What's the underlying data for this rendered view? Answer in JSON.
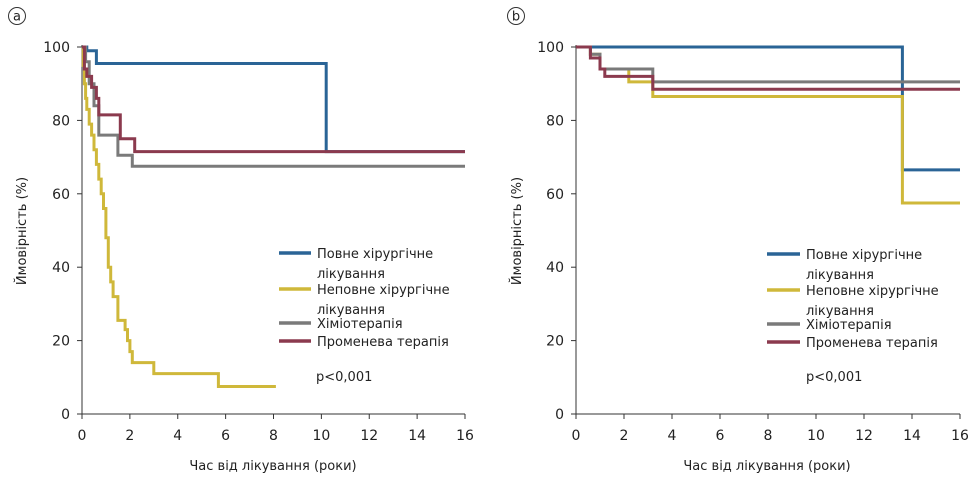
{
  "chart_data": [
    {
      "panel_label": "a",
      "type": "line",
      "step": true,
      "xlabel": "Час від лікування (роки)",
      "ylabel": "Ймовірність (%)",
      "xlim": [
        0,
        16
      ],
      "ylim": [
        0,
        100
      ],
      "xticks": [
        0,
        2,
        4,
        6,
        8,
        10,
        12,
        14,
        16
      ],
      "yticks": [
        0,
        20,
        40,
        60,
        80,
        100
      ],
      "grid": false,
      "legend_position": "right",
      "annotation": "p<0,001",
      "series": [
        {
          "name": "Повне хірургічне лікування",
          "color": "#2a6496",
          "x": [
            0,
            0.2,
            0.6,
            10.2,
            16
          ],
          "y": [
            100,
            99,
            95.5,
            71.5,
            71.5
          ]
        },
        {
          "name": "Неповне хірургічне лікування",
          "color": "#cfb83a",
          "x": [
            0,
            0.05,
            0.1,
            0.15,
            0.2,
            0.3,
            0.4,
            0.5,
            0.6,
            0.7,
            0.8,
            0.9,
            1.0,
            1.1,
            1.2,
            1.3,
            1.5,
            1.8,
            1.9,
            2.0,
            2.1,
            2.3,
            2.6,
            3.0,
            5.7,
            8.1
          ],
          "y": [
            100,
            95,
            90,
            86,
            83,
            79,
            76,
            72,
            68,
            64,
            60,
            56,
            48,
            40,
            36,
            32,
            25.5,
            23,
            20,
            17,
            14,
            14,
            14,
            11,
            7.5,
            7.5
          ]
        },
        {
          "name": "Хіміотерапія",
          "color": "#7a7a7a",
          "x": [
            0,
            0.15,
            0.3,
            0.5,
            0.7,
            1.5,
            2.1,
            16
          ],
          "y": [
            100,
            96,
            90,
            84,
            76,
            70.5,
            67.5,
            67.5
          ]
        },
        {
          "name": "Променева терапія",
          "color": "#8b3a4e",
          "x": [
            0,
            0.1,
            0.2,
            0.4,
            0.6,
            0.7,
            1.6,
            2.2,
            16
          ],
          "y": [
            100,
            94,
            92,
            89,
            86,
            81.5,
            75,
            71.5,
            71.5
          ]
        }
      ]
    },
    {
      "panel_label": "b",
      "type": "line",
      "step": true,
      "xlabel": "Час від лікування (роки)",
      "ylabel": "Ймовірність (%)",
      "xlim": [
        0,
        16
      ],
      "ylim": [
        0,
        100
      ],
      "xticks": [
        0,
        2,
        4,
        6,
        8,
        10,
        12,
        14,
        16
      ],
      "yticks": [
        0,
        20,
        40,
        60,
        80,
        100
      ],
      "grid": false,
      "legend_position": "right",
      "annotation": "p<0,001",
      "series": [
        {
          "name": "Повне хірургічне лікування",
          "color": "#2a6496",
          "x": [
            0,
            13.6,
            16
          ],
          "y": [
            100,
            66.5,
            66.5
          ]
        },
        {
          "name": "Неповне хірургічне лікування",
          "color": "#cfb83a",
          "x": [
            0,
            0.6,
            1.0,
            2.2,
            3.2,
            13.6,
            16
          ],
          "y": [
            100,
            98,
            94,
            90.5,
            86.5,
            57.5,
            57.5
          ]
        },
        {
          "name": "Хіміотерапія",
          "color": "#7a7a7a",
          "x": [
            0,
            0.6,
            1.0,
            3.2,
            16
          ],
          "y": [
            100,
            98,
            94,
            90.5,
            90.5
          ]
        },
        {
          "name": "Променева терапія",
          "color": "#8b3a4e",
          "x": [
            0,
            0.6,
            1.0,
            1.2,
            2.2,
            3.2,
            16
          ],
          "y": [
            100,
            97,
            94,
            92,
            92,
            88.5,
            88.5
          ]
        }
      ]
    }
  ]
}
